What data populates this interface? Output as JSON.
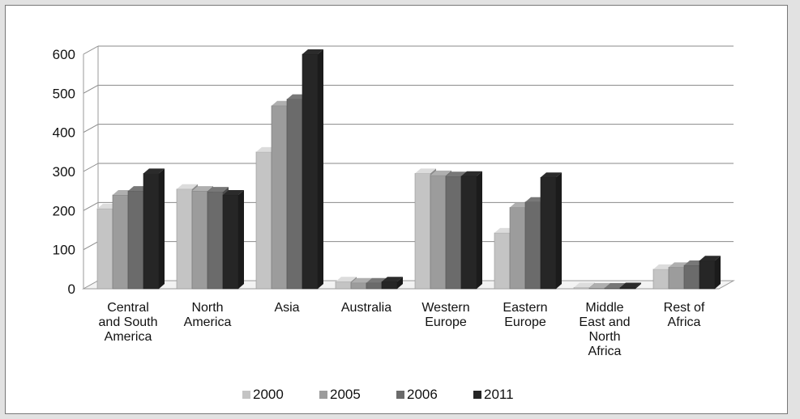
{
  "chart_data": {
    "type": "bar",
    "title": "",
    "xlabel": "",
    "ylabel": "",
    "ylim": [
      0,
      600
    ],
    "y_ticks": [
      "0",
      "100",
      "200",
      "300",
      "400",
      "500",
      "600"
    ],
    "categories": [
      "Central and South America",
      "North America",
      "Asia",
      "Australia",
      "Western Europe",
      "Eastern Europe",
      "Middle East and North Africa",
      "Rest of Africa"
    ],
    "category_label_lines": [
      [
        "Central",
        "and South",
        "America"
      ],
      [
        "North",
        "America"
      ],
      [
        "Asia"
      ],
      [
        "Australia"
      ],
      [
        "Western",
        "Europe"
      ],
      [
        "Eastern",
        "Europe"
      ],
      [
        "Middle",
        "East and",
        "North",
        "Africa"
      ],
      [
        "Rest of",
        "Africa"
      ]
    ],
    "series": [
      {
        "name": "2000",
        "values": [
          205,
          255,
          350,
          18,
          295,
          143,
          3,
          50
        ],
        "color": "#c4c4c4"
      },
      {
        "name": "2005",
        "values": [
          240,
          250,
          468,
          15,
          290,
          208,
          2,
          55
        ],
        "color": "#9c9c9c"
      },
      {
        "name": "2006",
        "values": [
          250,
          248,
          485,
          15,
          287,
          222,
          2,
          60
        ],
        "color": "#6b6b6b"
      },
      {
        "name": "2011",
        "values": [
          295,
          240,
          600,
          18,
          288,
          285,
          3,
          72
        ],
        "color": "#262626"
      }
    ],
    "grid": true,
    "legend_position": "bottom"
  }
}
